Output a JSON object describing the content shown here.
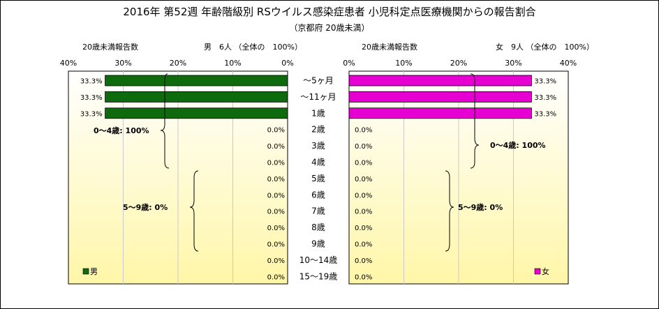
{
  "title": "2016年 第52週 年齢階級別 RSウイルス感染症患者 小児科定点医療機関からの報告割合",
  "subtitle": "（京都府 20歳未満）",
  "left_panel": {
    "header_left": "20歳未満報告数",
    "header_right": "男　6人 （全体の　100%）",
    "legend": "男",
    "brace_labels": [
      "0～4歳: 100%",
      "5～9歳: 0%"
    ]
  },
  "right_panel": {
    "header_left": "20歳未満報告数",
    "header_right": "女　9人 （全体の　100%）",
    "legend": "女",
    "brace_labels": [
      "0～4歳: 100%",
      "5～9歳: 0%"
    ]
  },
  "colors": {
    "male": "#0d6b0d",
    "female": "#e600d2",
    "plot_bg_top": "#ffffff",
    "plot_bg_bottom": "#fff6a8",
    "grid": "#c9c9c9"
  },
  "chart_data": {
    "type": "bar",
    "orientation": "horizontal",
    "categories": [
      "～5ヶ月",
      "～11ヶ月",
      "1歳",
      "2歳",
      "3歳",
      "4歳",
      "5歳",
      "6歳",
      "7歳",
      "8歳",
      "9歳",
      "10～14歳",
      "15～19歳"
    ],
    "xlim": [
      0,
      40
    ],
    "x_ticks": [
      "0%",
      "10%",
      "20%",
      "30%",
      "40%"
    ],
    "series": [
      {
        "name": "男",
        "values": [
          33.3,
          33.3,
          33.3,
          0.0,
          0.0,
          0.0,
          0.0,
          0.0,
          0.0,
          0.0,
          0.0,
          0.0,
          0.0
        ]
      },
      {
        "name": "女",
        "values": [
          33.3,
          33.3,
          33.3,
          0.0,
          0.0,
          0.0,
          0.0,
          0.0,
          0.0,
          0.0,
          0.0,
          0.0,
          0.0
        ]
      }
    ],
    "grid": true,
    "legend_position": "bottom"
  }
}
